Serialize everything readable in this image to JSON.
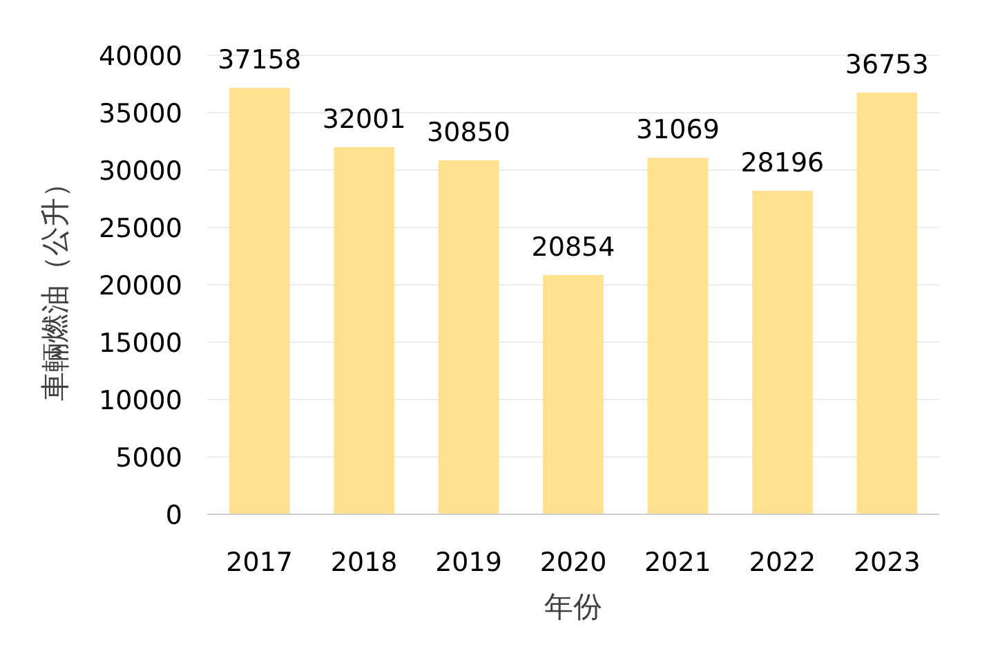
{
  "chart_data": {
    "type": "bar",
    "xlabel": "年份",
    "ylabel": "車輛燃油（公升）",
    "categories": [
      "2017",
      "2018",
      "2019",
      "2020",
      "2021",
      "2022",
      "2023"
    ],
    "values": [
      37158,
      32001,
      30850,
      20854,
      31069,
      28196,
      36753
    ],
    "color": "#ffe18f",
    "ylim": [
      0,
      40000
    ],
    "yticks": [
      0,
      5000,
      10000,
      15000,
      20000,
      25000,
      30000,
      35000,
      40000
    ],
    "grid": "y",
    "data_labels": true
  }
}
